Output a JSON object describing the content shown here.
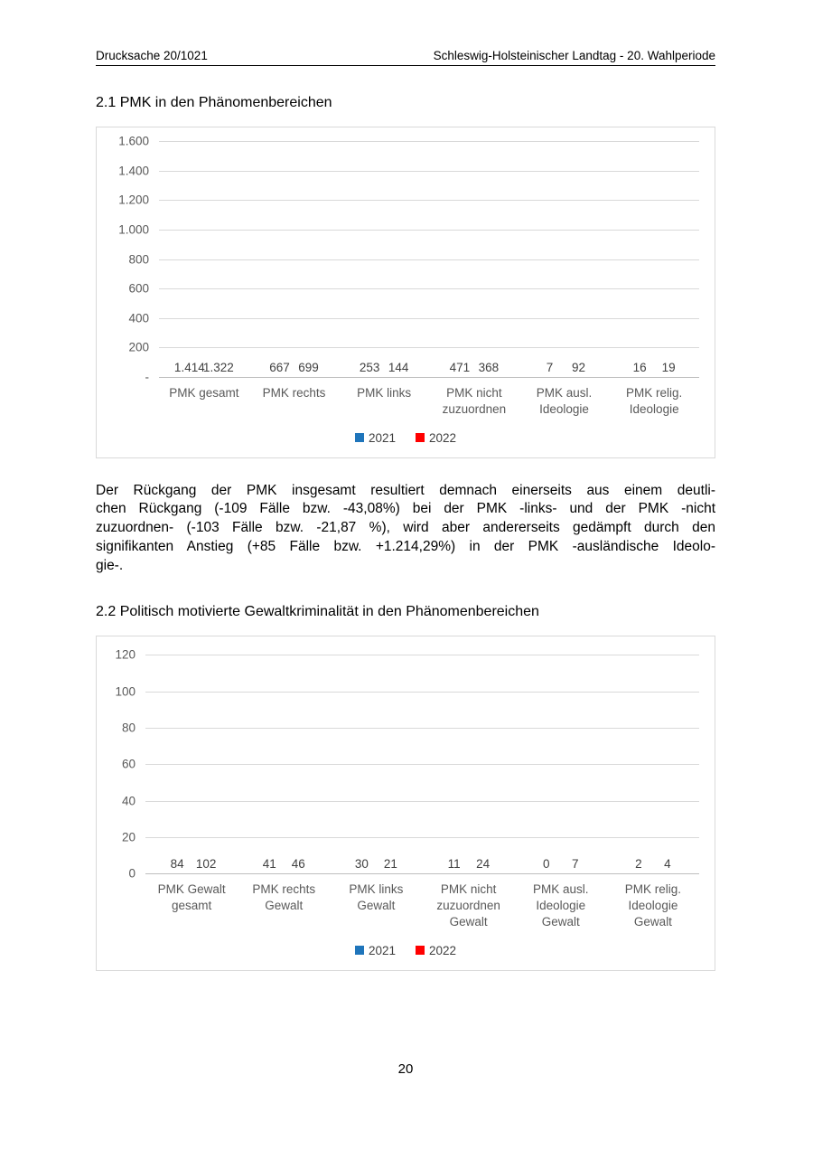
{
  "page": {
    "header_left": "Drucksache 20/1021",
    "header_right": "Schleswig-Holsteinischer Landtag - 20. Wahlperiode",
    "page_number": "20"
  },
  "sections": [
    {
      "title": "2.1 PMK in den Phänomenbereichen"
    },
    {
      "title": "2.2 Politisch motivierte Gewaltkriminalität in den Phänomenbereichen"
    }
  ],
  "paragraph": {
    "lines": [
      "Der Rückgang der PMK insgesamt resultiert demnach einerseits aus einem deutli-",
      "chen Rückgang (-109 Fälle bzw. -43,08%) bei der PMK -links- und der PMK -nicht",
      "zuzuordnen- (-103 Fälle bzw. -21,87 %), wird aber andererseits gedämpft durch den",
      "signifikanten Anstieg (+85 Fälle bzw. +1.214,29%) in der PMK -ausländische Ideolo-",
      "gie-."
    ]
  },
  "colors": {
    "series_2021": "#1F75BB",
    "series_2022": "#FF0000",
    "gridline": "#D9D9D9",
    "baseline": "#BFBFBF",
    "axis_text": "#595959",
    "data_label_text": "#404040"
  },
  "chart_data": [
    {
      "type": "bar",
      "title": "",
      "xlabel": "",
      "ylabel": "",
      "ylim": [
        0,
        1600
      ],
      "yticks": [
        "1.600",
        "1.400",
        "1.200",
        "1.000",
        "800",
        "600",
        "400",
        "200",
        "-"
      ],
      "grid": true,
      "legend_position": "bottom",
      "categories": [
        "PMK gesamt",
        "PMK rechts",
        "PMK links",
        "PMK nicht zuzuordnen",
        "PMK ausl. Ideologie",
        "PMK relig. Ideologie"
      ],
      "category_lines": [
        [
          "PMK gesamt"
        ],
        [
          "PMK rechts"
        ],
        [
          "PMK links"
        ],
        [
          "PMK nicht",
          "zuzuordnen"
        ],
        [
          "PMK ausl.",
          "Ideologie"
        ],
        [
          "PMK relig.",
          "Ideologie"
        ]
      ],
      "series": [
        {
          "name": "2021",
          "color": "#1F75BB",
          "values": [
            1414,
            667,
            253,
            471,
            7,
            16
          ]
        },
        {
          "name": "2022",
          "color": "#FF0000",
          "values": [
            1322,
            699,
            144,
            368,
            92,
            19
          ]
        }
      ],
      "value_labels": [
        [
          "1.414",
          "667",
          "253",
          "471",
          "7",
          "16"
        ],
        [
          "1.322",
          "699",
          "144",
          "368",
          "92",
          "19"
        ]
      ]
    },
    {
      "type": "bar",
      "title": "",
      "xlabel": "",
      "ylabel": "",
      "ylim": [
        0,
        120
      ],
      "yticks": [
        "120",
        "100",
        "80",
        "60",
        "40",
        "20",
        "0"
      ],
      "grid": true,
      "legend_position": "bottom",
      "categories": [
        "PMK Gewalt gesamt",
        "PMK rechts Gewalt",
        "PMK links Gewalt",
        "PMK nicht zuzuordnen Gewalt",
        "PMK ausl. Ideologie Gewalt",
        "PMK relig. Ideologie Gewalt"
      ],
      "category_lines": [
        [
          "PMK Gewalt",
          "gesamt"
        ],
        [
          "PMK rechts",
          "Gewalt"
        ],
        [
          "PMK links",
          "Gewalt"
        ],
        [
          "PMK nicht",
          "zuzuordnen",
          "Gewalt"
        ],
        [
          "PMK ausl.",
          "Ideologie",
          "Gewalt"
        ],
        [
          "PMK relig.",
          "Ideologie",
          "Gewalt"
        ]
      ],
      "series": [
        {
          "name": "2021",
          "color": "#1F75BB",
          "values": [
            84,
            41,
            30,
            11,
            0,
            2
          ]
        },
        {
          "name": "2022",
          "color": "#FF0000",
          "values": [
            102,
            46,
            21,
            24,
            7,
            4
          ]
        }
      ],
      "value_labels": [
        [
          "84",
          "41",
          "30",
          "11",
          "0",
          "2"
        ],
        [
          "102",
          "46",
          "21",
          "24",
          "7",
          "4"
        ]
      ]
    }
  ]
}
